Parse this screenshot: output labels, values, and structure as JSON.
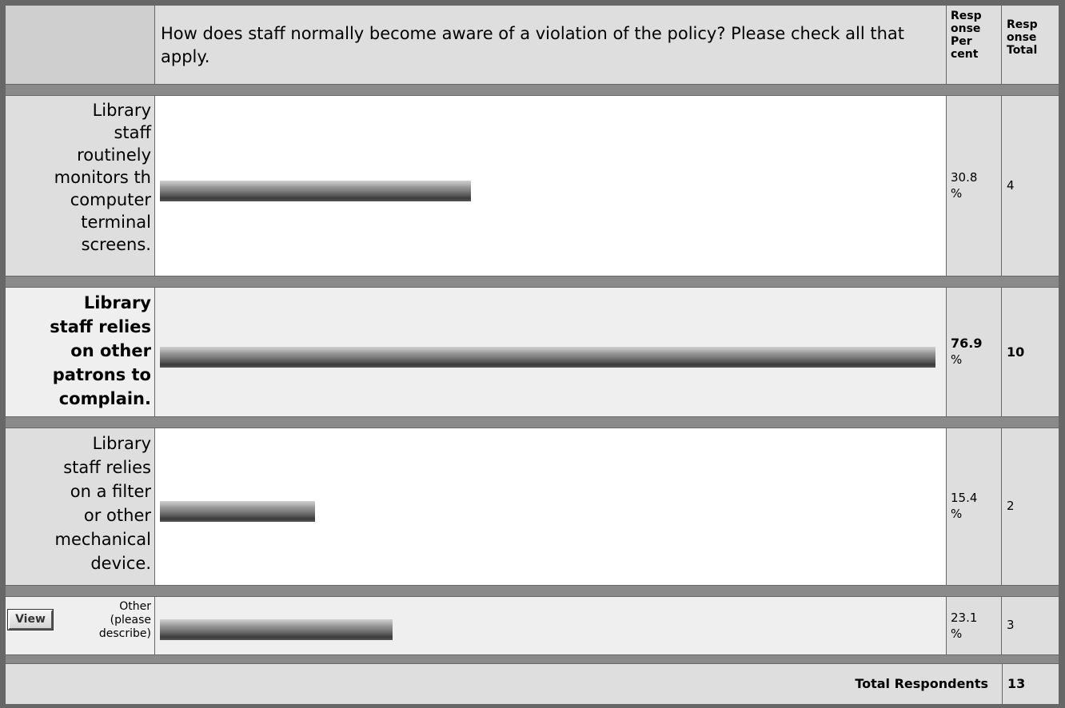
{
  "question": "How does staff normally become aware of a violation of the policy? Please check all that apply.",
  "headers": {
    "percent": [
      "Resp",
      "onse",
      "Per",
      "cent"
    ],
    "total": [
      "Resp",
      "onse",
      "Total"
    ]
  },
  "rows": [
    {
      "label_lines": [
        "Library",
        "staff",
        "routinely",
        "monitors th",
        "computer",
        "terminal",
        "screens."
      ],
      "percent": 30.8,
      "percent_text": "30.8",
      "percent_sign": "%",
      "total": "4",
      "bold": false
    },
    {
      "label_lines": [
        "Library",
        "staff relies",
        "on other",
        "patrons to",
        "complain."
      ],
      "percent": 76.9,
      "percent_text": "76.9",
      "percent_sign": "%",
      "total": "10",
      "bold": true
    },
    {
      "label_lines": [
        "Library",
        "staff relies",
        "on a filter",
        "or other",
        "mechanical",
        "device."
      ],
      "percent": 15.4,
      "percent_text": "15.4",
      "percent_sign": "%",
      "total": "2",
      "bold": false
    }
  ],
  "other": {
    "button_label": "View",
    "label_lines": [
      "Other",
      "(please",
      "describe)"
    ],
    "percent": 23.1,
    "percent_text": "23.1",
    "percent_sign": "%",
    "total": "3"
  },
  "footer": {
    "label": "Total Respondents",
    "value": "13"
  },
  "colors": {
    "frame": "#676767",
    "cell_gray": "#dedede",
    "cell_white": "#ffffff",
    "bar_dark": "#3c3c3c"
  }
}
